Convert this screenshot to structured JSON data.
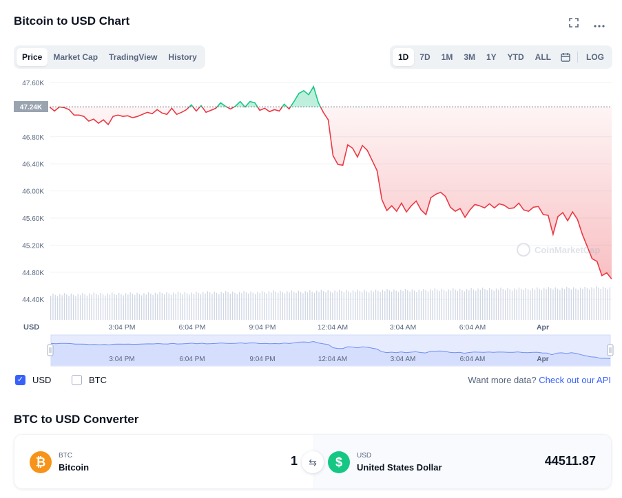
{
  "header": {
    "title": "Bitcoin to USD Chart"
  },
  "tabs": [
    {
      "label": "Price",
      "active": true
    },
    {
      "label": "Market Cap",
      "active": false
    },
    {
      "label": "TradingView",
      "active": false
    },
    {
      "label": "History",
      "active": false
    }
  ],
  "ranges": {
    "items": [
      {
        "label": "1D",
        "active": true
      },
      {
        "label": "7D",
        "active": false
      },
      {
        "label": "1M",
        "active": false
      },
      {
        "label": "3M",
        "active": false
      },
      {
        "label": "1Y",
        "active": false
      },
      {
        "label": "YTD",
        "active": false
      },
      {
        "label": "ALL",
        "active": false
      }
    ],
    "log_label": "LOG"
  },
  "chart_data": {
    "type": "line",
    "y_ticks": [
      47600,
      46800,
      46400,
      46000,
      45600,
      45200,
      44800,
      44400
    ],
    "y_tick_labels": [
      "47.60K",
      "46.80K",
      "46.40K",
      "46.00K",
      "45.60K",
      "45.20K",
      "44.80K",
      "44.40K"
    ],
    "ylim": [
      44200,
      47600
    ],
    "ylabel": "USD",
    "x_tick_labels": [
      "3:04 PM",
      "6:04 PM",
      "9:04 PM",
      "12:04 AM",
      "3:04 AM",
      "6:04 AM",
      "Apr"
    ],
    "reference_price": 47240,
    "reference_label": "47.24K",
    "prices": [
      47240,
      47180,
      47240,
      47230,
      47200,
      47120,
      47120,
      47100,
      47030,
      47060,
      47000,
      47050,
      46980,
      47100,
      47120,
      47100,
      47110,
      47080,
      47100,
      47130,
      47160,
      47140,
      47200,
      47150,
      47130,
      47220,
      47130,
      47160,
      47200,
      47270,
      47180,
      47260,
      47160,
      47190,
      47220,
      47300,
      47250,
      47210,
      47250,
      47320,
      47240,
      47320,
      47300,
      47190,
      47220,
      47170,
      47200,
      47180,
      47280,
      47210,
      47320,
      47440,
      47480,
      47420,
      47540,
      47300,
      47160,
      47050,
      46520,
      46390,
      46380,
      46680,
      46630,
      46500,
      46670,
      46600,
      46450,
      46300,
      45870,
      45710,
      45780,
      45700,
      45820,
      45690,
      45780,
      45850,
      45720,
      45650,
      45900,
      45950,
      45980,
      45920,
      45760,
      45700,
      45740,
      45610,
      45720,
      45800,
      45780,
      45750,
      45810,
      45750,
      45810,
      45790,
      45740,
      45750,
      45820,
      45720,
      45700,
      45760,
      45770,
      45650,
      45640,
      45360,
      45620,
      45680,
      45560,
      45690,
      45580,
      45360,
      45180,
      45000,
      44960,
      44750,
      44790,
      44700
    ],
    "watermark": "CoinMarketCap"
  },
  "legend": {
    "usd_label": "USD",
    "usd_checked": true,
    "btc_label": "BTC",
    "btc_checked": false
  },
  "api": {
    "prefix": "Want more data?",
    "link": "Check out our API"
  },
  "converter": {
    "title": "BTC to USD Converter",
    "from_symbol": "BTC",
    "from_name": "Bitcoin",
    "from_amount": "1",
    "from_badge": "₿",
    "to_symbol": "USD",
    "to_name": "United States Dollar",
    "to_amount": "44511.87",
    "to_badge": "$",
    "swap_glyph": "⇆"
  },
  "colors": {
    "up": "#16c784",
    "down": "#ea3943",
    "accent": "#3861fb",
    "btc_orange": "#f7931a",
    "usd_green": "#16c784"
  }
}
